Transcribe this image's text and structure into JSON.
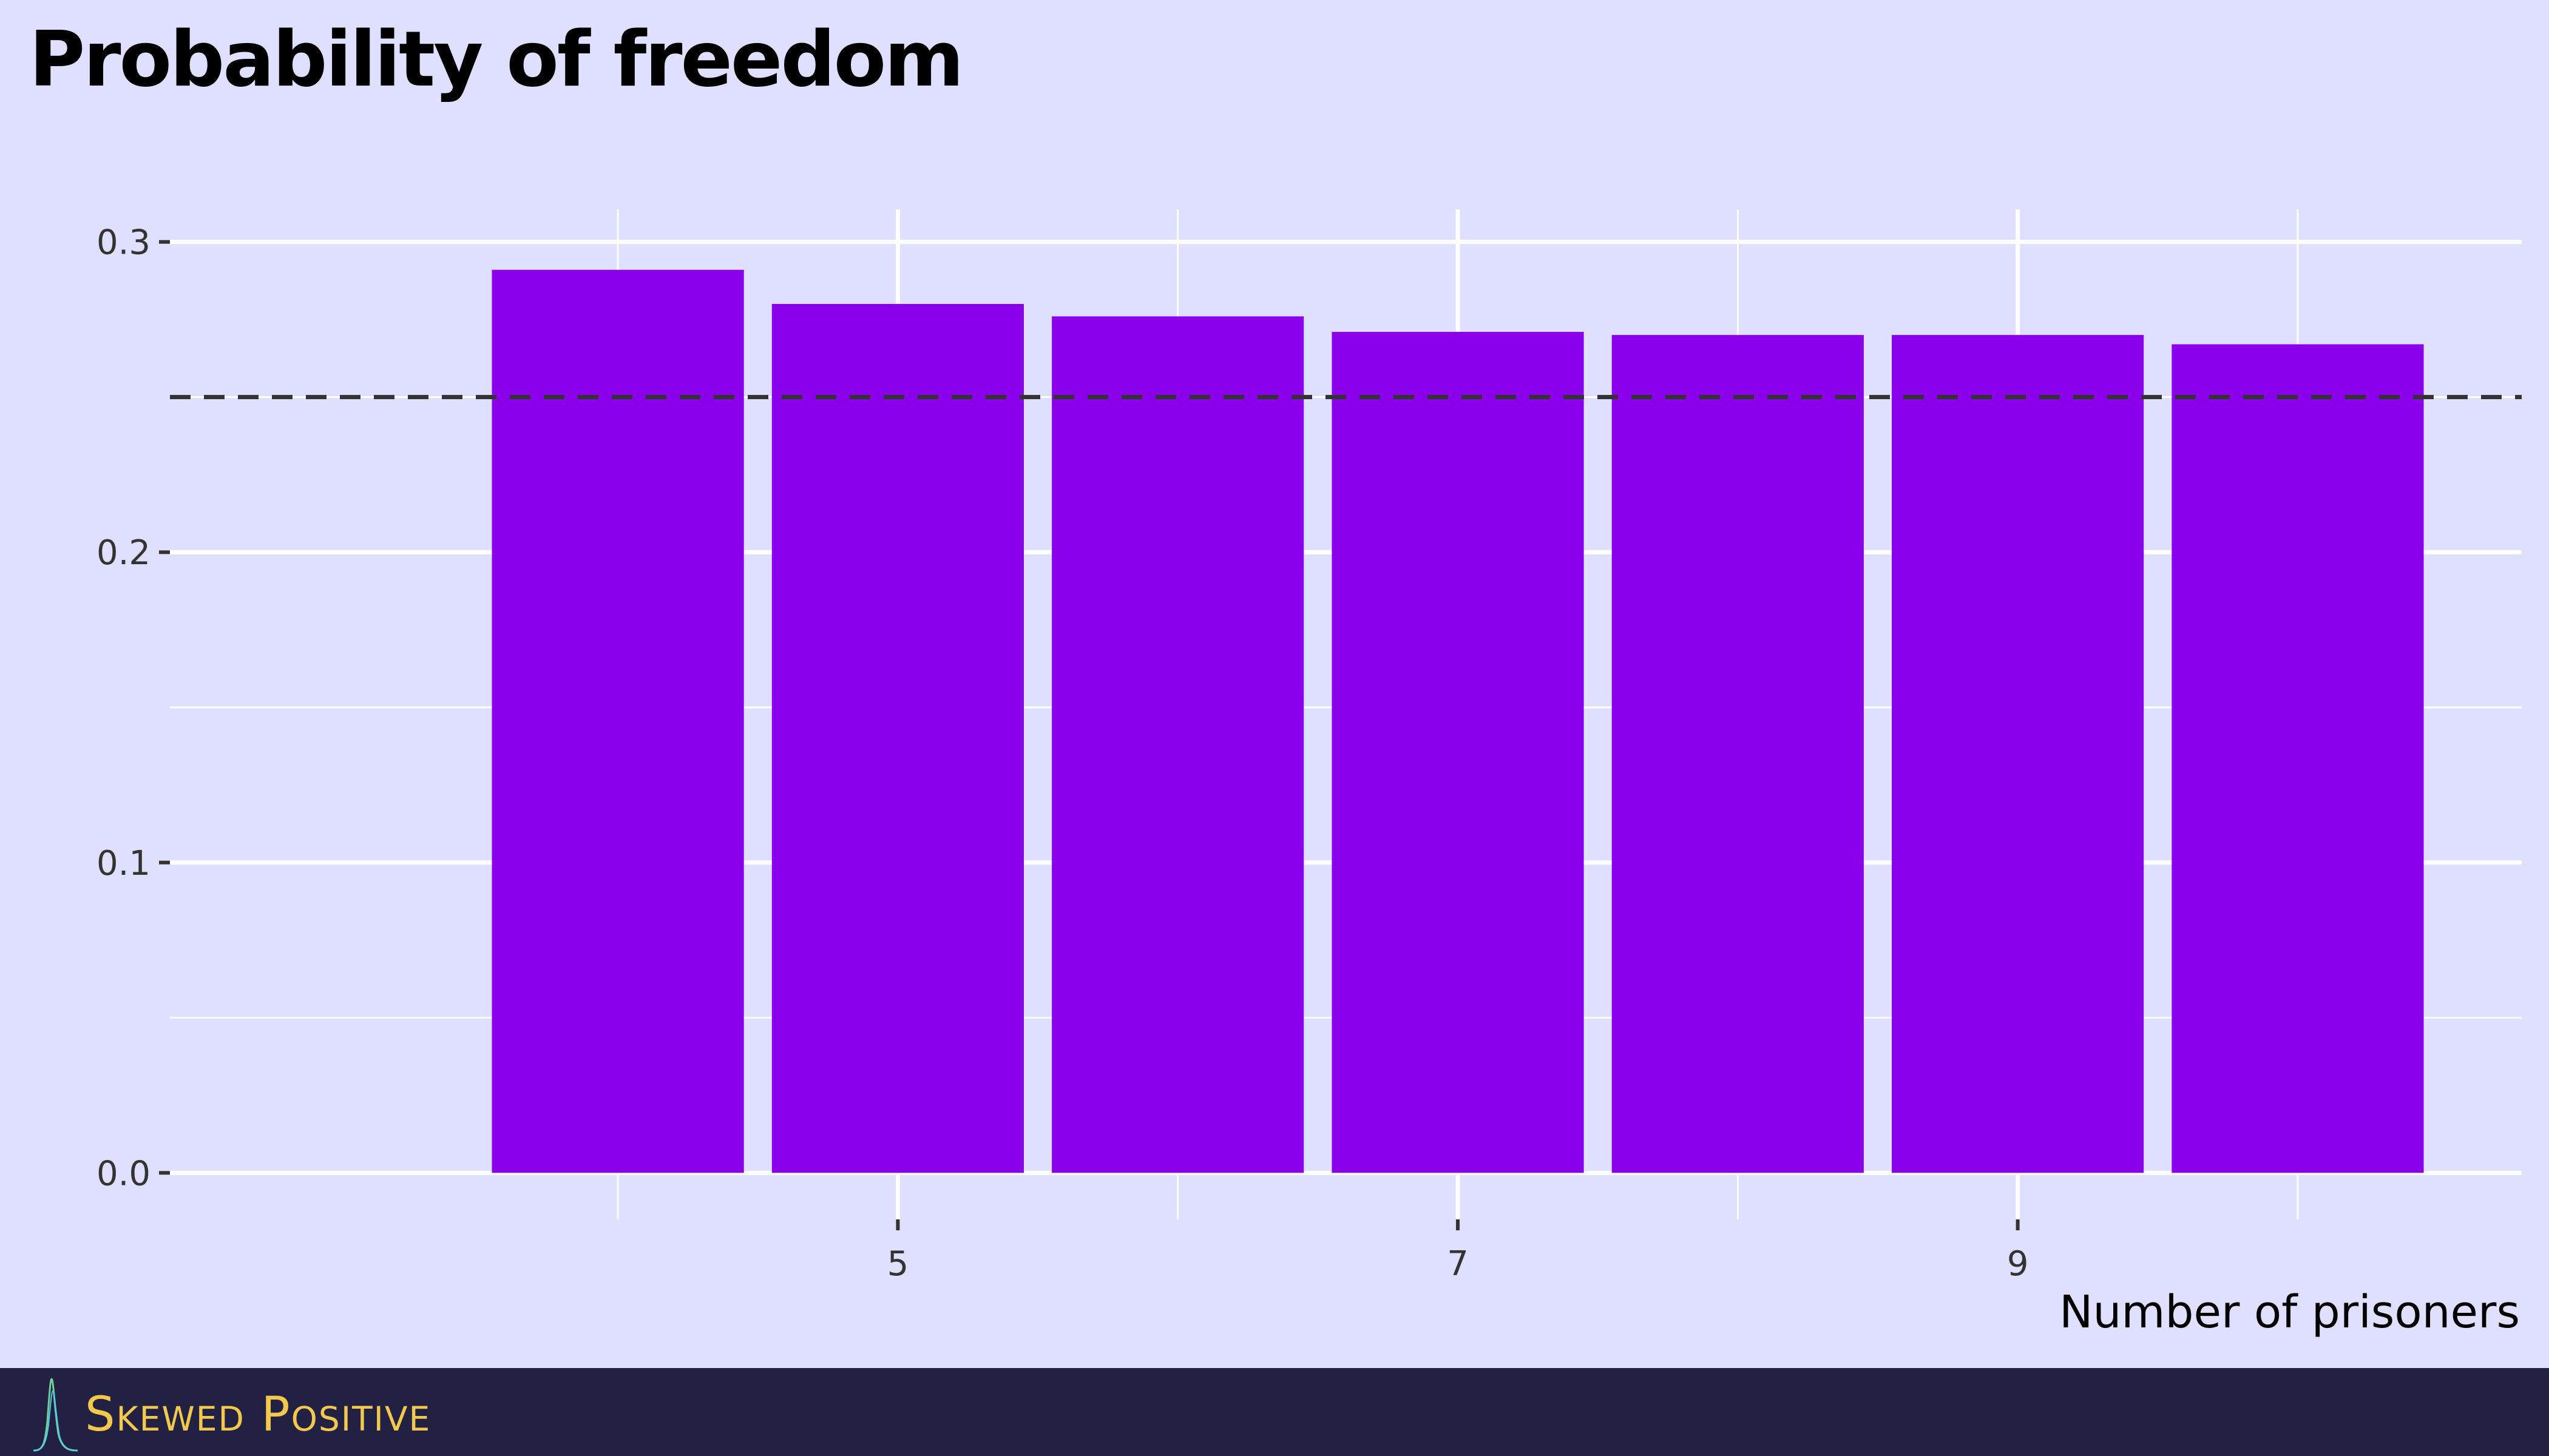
{
  "chart_data": {
    "type": "bar",
    "title": "Probability of freedom",
    "xlabel": "Number of prisoners",
    "ylabel": "",
    "x": [
      4,
      5,
      6,
      7,
      8,
      9,
      10
    ],
    "values": [
      0.291,
      0.28,
      0.276,
      0.271,
      0.27,
      0.27,
      0.267
    ],
    "xlim": [
      2.4,
      10.8
    ],
    "ylim": [
      -0.015,
      0.3105
    ],
    "x_ticks": [
      5,
      7,
      9
    ],
    "x_tick_labels": [
      "5",
      "7",
      "9"
    ],
    "y_ticks": [
      0.0,
      0.1,
      0.2,
      0.3
    ],
    "y_tick_labels": [
      "0.0",
      "0.1",
      "0.2",
      "0.3"
    ],
    "reference_line": {
      "y": 0.25,
      "style": "dashed"
    },
    "grid": true,
    "colors": {
      "bar": "#8a00ea",
      "background": "#dfdfff",
      "grid": "#ffffff",
      "reference": "#333333"
    }
  },
  "footer": {
    "brand": "Skewed Positive",
    "colors": {
      "background": "#222043",
      "text": "#f2c94c"
    }
  }
}
